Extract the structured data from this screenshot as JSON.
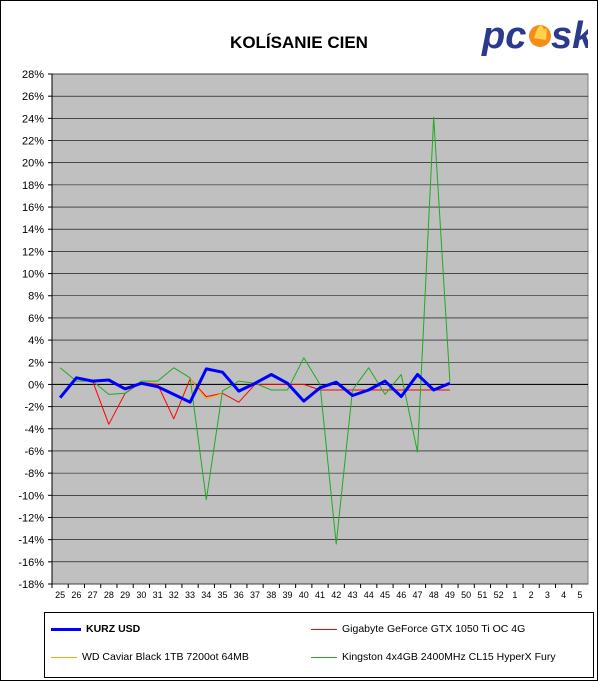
{
  "chart_data": {
    "type": "line",
    "title": "KOLÍSANIE CIEN",
    "xlabel": "",
    "ylabel": "",
    "ylim": [
      -18,
      28
    ],
    "ystep": 2,
    "y_tick_suffix": "%",
    "grid": true,
    "plot_background": "#c0c0c0",
    "legend_position": "bottom",
    "categories": [
      "25",
      "26",
      "27",
      "28",
      "29",
      "30",
      "31",
      "32",
      "33",
      "34",
      "35",
      "36",
      "37",
      "38",
      "39",
      "40",
      "41",
      "42",
      "43",
      "44",
      "45",
      "46",
      "47",
      "48",
      "49",
      "50",
      "51",
      "52",
      "1",
      "2",
      "3",
      "4",
      "5"
    ],
    "series": [
      {
        "name": "KURZ USD",
        "color": "#0000ff",
        "width": 3,
        "values": [
          -1.2,
          0.6,
          0.3,
          0.4,
          -0.4,
          0.1,
          -0.2,
          -0.9,
          -1.6,
          1.4,
          1.1,
          -0.6,
          0.1,
          0.9,
          0.1,
          -1.5,
          -0.3,
          0.2,
          -1.0,
          -0.5,
          0.3,
          -1.1,
          0.9,
          -0.5,
          0.1,
          null,
          null,
          null,
          null,
          null,
          null,
          null,
          null
        ]
      },
      {
        "name": "Gigabyte GeForce GTX 1050 Ti OC 4G",
        "color": "#ff0000",
        "width": 1,
        "values": [
          null,
          null,
          0.3,
          -3.6,
          -0.8,
          0.2,
          0.0,
          -3.1,
          0.5,
          -1.1,
          -0.8,
          -1.6,
          0.0,
          0.0,
          0.0,
          0.0,
          -0.5,
          -0.5,
          -0.5,
          -0.5,
          -0.5,
          -0.5,
          -0.5,
          -0.5,
          -0.5,
          null,
          null,
          null,
          null,
          null,
          null,
          null,
          null
        ]
      },
      {
        "name": "WD Caviar Black 1TB 7200ot 64MB",
        "color": "#ffa500",
        "width": 1,
        "values": [
          null,
          null,
          null,
          null,
          null,
          null,
          null,
          null,
          0.5,
          -1.3,
          -0.8,
          null,
          null,
          null,
          null,
          null,
          null,
          null,
          null,
          null,
          null,
          null,
          null,
          null,
          null,
          null,
          null,
          null,
          null,
          null,
          null,
          null,
          null
        ]
      },
      {
        "name": "Kingston 4x4GB 2400MHz CL15 HyperX Fury",
        "color": "#22aa22",
        "width": 1,
        "values": [
          1.5,
          0.3,
          0.3,
          -0.9,
          -0.8,
          0.3,
          0.3,
          1.5,
          0.6,
          -10.4,
          -0.6,
          0.3,
          0.1,
          -0.5,
          -0.5,
          2.4,
          0.0,
          -14.4,
          -0.5,
          1.5,
          -0.9,
          0.9,
          -6.1,
          24.1,
          0.2,
          null,
          null,
          null,
          null,
          null,
          null,
          null,
          null
        ]
      }
    ]
  },
  "logo": {
    "text": "pcosk",
    "colors": {
      "text": "#2b3a8c",
      "flame": "#f28c1b"
    }
  }
}
